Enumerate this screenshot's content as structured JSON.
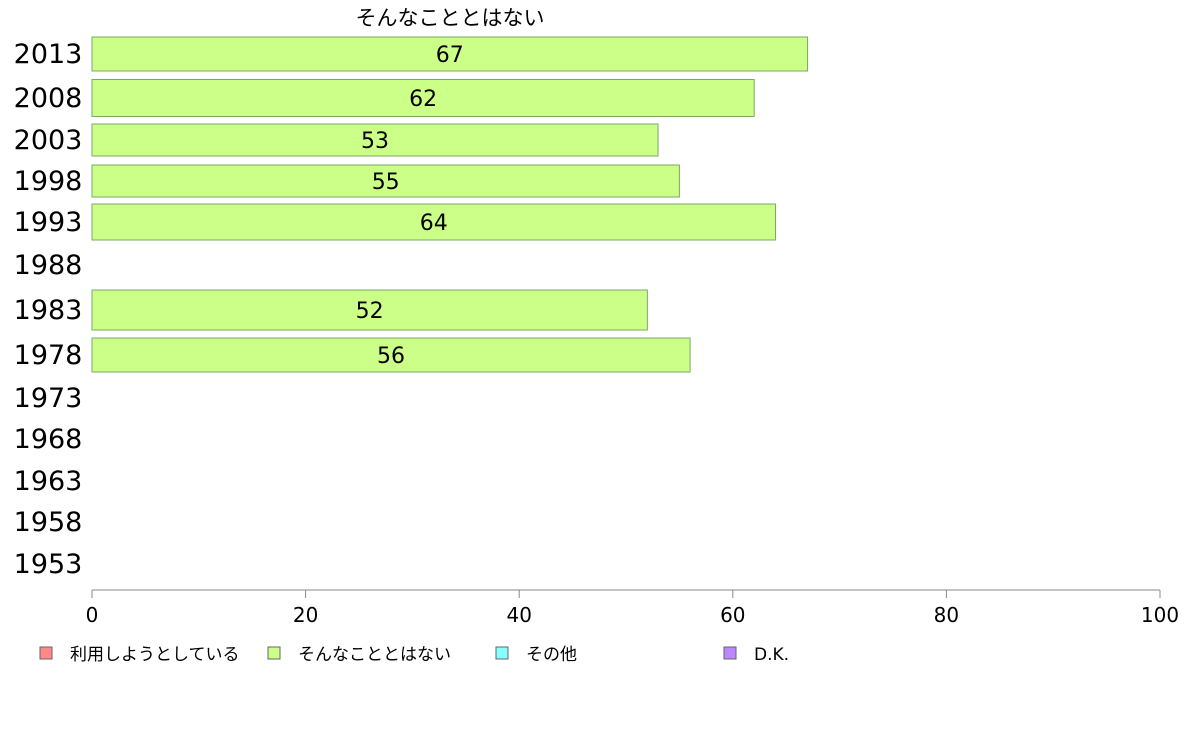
{
  "chart_data": {
    "type": "bar",
    "orientation": "horizontal",
    "title": "そんなこととはない",
    "categories": [
      "2013",
      "2008",
      "2003",
      "1998",
      "1993",
      "1988",
      "1983",
      "1978",
      "1973",
      "1968",
      "1963",
      "1958",
      "1953"
    ],
    "series": [
      {
        "name": "そんなこととはない",
        "color": "#ccff88",
        "values": [
          67,
          62,
          53,
          55,
          64,
          null,
          52,
          56,
          null,
          null,
          null,
          null,
          null
        ]
      }
    ],
    "xlim": [
      0,
      100
    ],
    "xticks": [
      0,
      20,
      40,
      60,
      80,
      100
    ],
    "grid": false,
    "legend": {
      "placement": "bottom",
      "items": [
        {
          "label": "利用しようとしている",
          "color": "#ff8888"
        },
        {
          "label": "そんなこととはない",
          "color": "#ccff88"
        },
        {
          "label": "その他",
          "color": "#88ffff"
        },
        {
          "label": "D.K.",
          "color": "#bb88ff"
        }
      ]
    }
  }
}
